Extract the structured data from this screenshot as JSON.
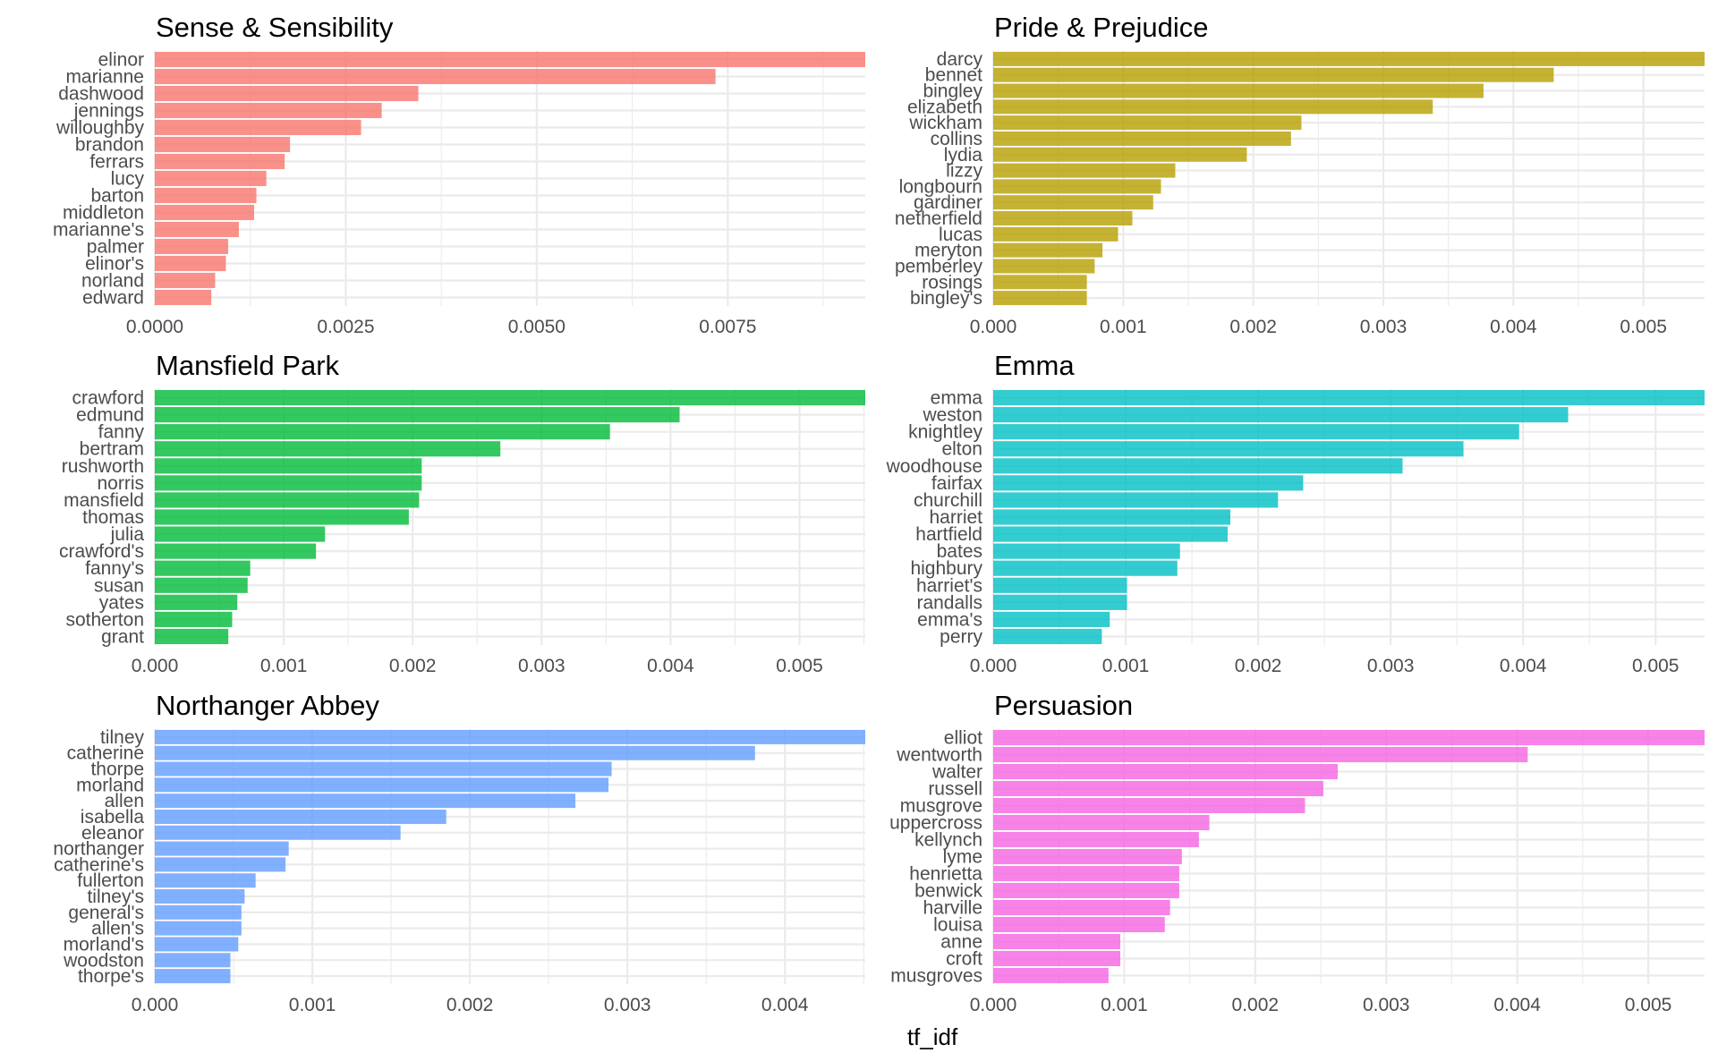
{
  "chart_data": {
    "type": "bar",
    "orientation": "horizontal",
    "layout": "facet-grid 3 rows x 2 columns, free scales",
    "xlabel": "tf_idf",
    "ylabel": "",
    "grid": true,
    "legend": "none",
    "panels": [
      {
        "title": "Sense & Sensibility",
        "color": "#F8766D",
        "categories": [
          "elinor",
          "marianne",
          "dashwood",
          "jennings",
          "willoughby",
          "brandon",
          "ferrars",
          "lucy",
          "barton",
          "middleton",
          "marianne's",
          "palmer",
          "elinor's",
          "norland",
          "edward"
        ],
        "values": [
          0.0093,
          0.00734,
          0.00345,
          0.00297,
          0.0027,
          0.00177,
          0.0017,
          0.00146,
          0.00133,
          0.0013,
          0.0011,
          0.00096,
          0.00093,
          0.00079,
          0.00074
        ],
        "xlim": [
          0,
          0.0093
        ],
        "ticks": [
          0,
          0.0025,
          0.005,
          0.0075
        ],
        "tick_labels": [
          "0.0000",
          "0.0025",
          "0.0050",
          "0.0075"
        ]
      },
      {
        "title": "Pride & Prejudice",
        "color": "#B79F00",
        "categories": [
          "darcy",
          "bennet",
          "bingley",
          "elizabeth",
          "wickham",
          "collins",
          "lydia",
          "lizzy",
          "longbourn",
          "gardiner",
          "netherfield",
          "lucas",
          "meryton",
          "pemberley",
          "rosings",
          "bingley's"
        ],
        "values": [
          0.00547,
          0.00431,
          0.00377,
          0.00338,
          0.00237,
          0.00229,
          0.00195,
          0.0014,
          0.00129,
          0.00123,
          0.00107,
          0.00096,
          0.00084,
          0.00078,
          0.00072,
          0.00072
        ],
        "xlim": [
          0,
          0.00547
        ],
        "ticks": [
          0,
          0.001,
          0.002,
          0.003,
          0.004,
          0.005
        ],
        "tick_labels": [
          "0.000",
          "0.001",
          "0.002",
          "0.003",
          "0.004",
          "0.005"
        ]
      },
      {
        "title": "Mansfield Park",
        "color": "#00BA38",
        "categories": [
          "crawford",
          "edmund",
          "fanny",
          "bertram",
          "rushworth",
          "norris",
          "mansfield",
          "thomas",
          "julia",
          "crawford's",
          "fanny's",
          "susan",
          "yates",
          "sotherton",
          "grant"
        ],
        "values": [
          0.00551,
          0.00407,
          0.00353,
          0.00268,
          0.00207,
          0.00207,
          0.00205,
          0.00197,
          0.00132,
          0.00125,
          0.00074,
          0.00072,
          0.00064,
          0.0006,
          0.00057
        ],
        "xlim": [
          0,
          0.00551
        ],
        "ticks": [
          0,
          0.001,
          0.002,
          0.003,
          0.004,
          0.005
        ],
        "tick_labels": [
          "0.000",
          "0.001",
          "0.002",
          "0.003",
          "0.004",
          "0.005"
        ]
      },
      {
        "title": "Emma",
        "color": "#00BFC4",
        "categories": [
          "emma",
          "weston",
          "knightley",
          "elton",
          "woodhouse",
          "fairfax",
          "churchill",
          "harriet",
          "hartfield",
          "bates",
          "highbury",
          "harriet's",
          "randalls",
          "emma's",
          "perry"
        ],
        "values": [
          0.00537,
          0.00434,
          0.00397,
          0.00355,
          0.00309,
          0.00234,
          0.00215,
          0.00179,
          0.00177,
          0.00141,
          0.00139,
          0.00101,
          0.00101,
          0.00088,
          0.00082
        ],
        "xlim": [
          0,
          0.00537
        ],
        "ticks": [
          0,
          0.001,
          0.002,
          0.003,
          0.004,
          0.005
        ],
        "tick_labels": [
          "0.000",
          "0.001",
          "0.002",
          "0.003",
          "0.004",
          "0.005"
        ]
      },
      {
        "title": "Northanger Abbey",
        "color": "#619CFF",
        "categories": [
          "tilney",
          "catherine",
          "thorpe",
          "morland",
          "allen",
          "isabella",
          "eleanor",
          "northanger",
          "catherine's",
          "fullerton",
          "tilney's",
          "general's",
          "allen's",
          "morland's",
          "woodston",
          "thorpe's"
        ],
        "values": [
          0.00451,
          0.00381,
          0.0029,
          0.00288,
          0.00267,
          0.00185,
          0.00156,
          0.00085,
          0.00083,
          0.00064,
          0.00057,
          0.00055,
          0.00055,
          0.00053,
          0.00048,
          0.00048
        ],
        "xlim": [
          0,
          0.00451
        ],
        "ticks": [
          0,
          0.001,
          0.002,
          0.003,
          0.004
        ],
        "tick_labels": [
          "0.000",
          "0.001",
          "0.002",
          "0.003",
          "0.004"
        ]
      },
      {
        "title": "Persuasion",
        "color": "#F564E3",
        "categories": [
          "elliot",
          "wentworth",
          "walter",
          "russell",
          "musgrove",
          "uppercross",
          "kellynch",
          "lyme",
          "henrietta",
          "benwick",
          "harville",
          "louisa",
          "anne",
          "croft",
          "musgroves"
        ],
        "values": [
          0.00543,
          0.00408,
          0.00263,
          0.00252,
          0.00238,
          0.00165,
          0.00157,
          0.00144,
          0.00142,
          0.00142,
          0.00135,
          0.00131,
          0.00097,
          0.00097,
          0.00088
        ],
        "xlim": [
          0,
          0.00543
        ],
        "ticks": [
          0,
          0.001,
          0.002,
          0.003,
          0.004,
          0.005
        ],
        "tick_labels": [
          "0.000",
          "0.001",
          "0.002",
          "0.003",
          "0.004",
          "0.005"
        ]
      }
    ]
  }
}
